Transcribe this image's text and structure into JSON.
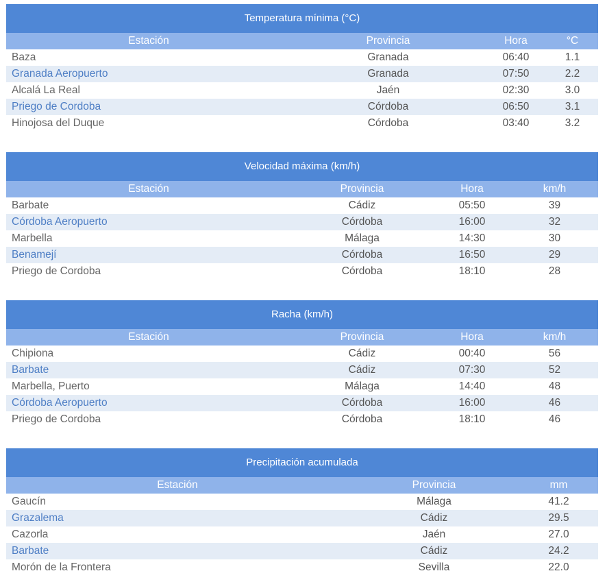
{
  "tables": [
    {
      "title": "Temperatura mínima (°C)",
      "headers": [
        "Estación",
        "Provincia",
        "Hora",
        "°C"
      ],
      "rows": [
        [
          "Baza",
          "Granada",
          "06:40",
          "1.1"
        ],
        [
          "Granada Aeropuerto",
          "Granada",
          "07:50",
          "2.2"
        ],
        [
          "Alcalá La Real",
          "Jaén",
          "02:30",
          "3.0"
        ],
        [
          "Priego de Cordoba",
          "Córdoba",
          "06:50",
          "3.1"
        ],
        [
          "Hinojosa del Duque",
          "Córdoba",
          "03:40",
          "3.2"
        ]
      ]
    },
    {
      "title": "Velocidad máxima (km/h)",
      "headers": [
        "Estación",
        "Provincia",
        "Hora",
        "km/h"
      ],
      "rows": [
        [
          "Barbate",
          "Cádiz",
          "05:50",
          "39"
        ],
        [
          "Córdoba Aeropuerto",
          "Córdoba",
          "16:00",
          "32"
        ],
        [
          "Marbella",
          "Málaga",
          "14:30",
          "30"
        ],
        [
          "Benamejí",
          "Córdoba",
          "16:50",
          "29"
        ],
        [
          "Priego de Cordoba",
          "Córdoba",
          "18:10",
          "28"
        ]
      ]
    },
    {
      "title": "Racha (km/h)",
      "headers": [
        "Estación",
        "Provincia",
        "Hora",
        "km/h"
      ],
      "rows": [
        [
          "Chipiona",
          "Cádiz",
          "00:40",
          "56"
        ],
        [
          "Barbate",
          "Cádiz",
          "07:30",
          "52"
        ],
        [
          "Marbella, Puerto",
          "Málaga",
          "14:40",
          "48"
        ],
        [
          "Córdoba Aeropuerto",
          "Córdoba",
          "16:00",
          "46"
        ],
        [
          "Priego de Cordoba",
          "Córdoba",
          "18:10",
          "46"
        ]
      ]
    },
    {
      "title": "Precipitación acumulada",
      "headers": [
        "Estación",
        "Provincia",
        "mm"
      ],
      "rows": [
        [
          "Gaucín",
          "Málaga",
          "41.2"
        ],
        [
          "Grazalema",
          "Cádiz",
          "29.5"
        ],
        [
          "Cazorla",
          "Jaén",
          "27.0"
        ],
        [
          "Barbate",
          "Cádiz",
          "24.2"
        ],
        [
          "Morón de la Frontera",
          "Sevilla",
          "22.0"
        ]
      ]
    }
  ]
}
